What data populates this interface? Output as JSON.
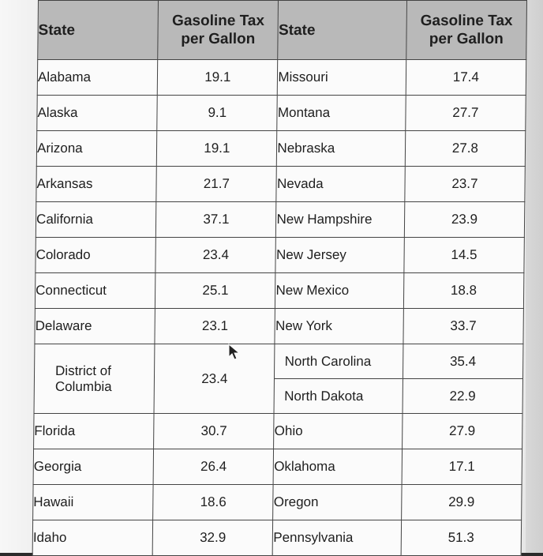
{
  "table": {
    "headers": [
      "State",
      "Gasoline Tax per Gallon",
      "State",
      "Gasoline Tax per Gallon"
    ],
    "rows": [
      {
        "state1": "Alabama",
        "tax1": "19.1",
        "state2": "Missouri",
        "tax2": "17.4"
      },
      {
        "state1": "Alaska",
        "tax1": "9.1",
        "state2": "Montana",
        "tax2": "27.7"
      },
      {
        "state1": "Arizona",
        "tax1": "19.1",
        "state2": "Nebraska",
        "tax2": "27.8"
      },
      {
        "state1": "Arkansas",
        "tax1": "21.7",
        "state2": "Nevada",
        "tax2": "23.7"
      },
      {
        "state1": "California",
        "tax1": "37.1",
        "state2": "New Hampshire",
        "tax2": "23.9"
      },
      {
        "state1": "Colorado",
        "tax1": "23.4",
        "state2": "New Jersey",
        "tax2": "14.5"
      },
      {
        "state1": "Connecticut",
        "tax1": "25.1",
        "state2": "New Mexico",
        "tax2": "18.8"
      },
      {
        "state1": "Delaware",
        "tax1": "23.1",
        "state2": "New York",
        "tax2": "33.7"
      },
      {
        "state1": "District of Columbia",
        "tax1": "23.4",
        "state2": "North Carolina",
        "tax2": "35.4",
        "state2b": "North Dakota",
        "tax2b": "22.9"
      },
      {
        "state1": "Florida",
        "tax1": "30.7",
        "state2": "Ohio",
        "tax2": "27.9"
      },
      {
        "state1": "Georgia",
        "tax1": "26.4",
        "state2": "Oklahoma",
        "tax2": "17.1"
      },
      {
        "state1": "Hawaii",
        "tax1": "18.6",
        "state2": "Oregon",
        "tax2": "29.9"
      },
      {
        "state1": "Idaho",
        "tax1": "32.9",
        "state2": "Pennsylvania",
        "tax2": "51.3"
      }
    ]
  },
  "icons": {
    "cursor": "mouse-pointer-icon"
  }
}
